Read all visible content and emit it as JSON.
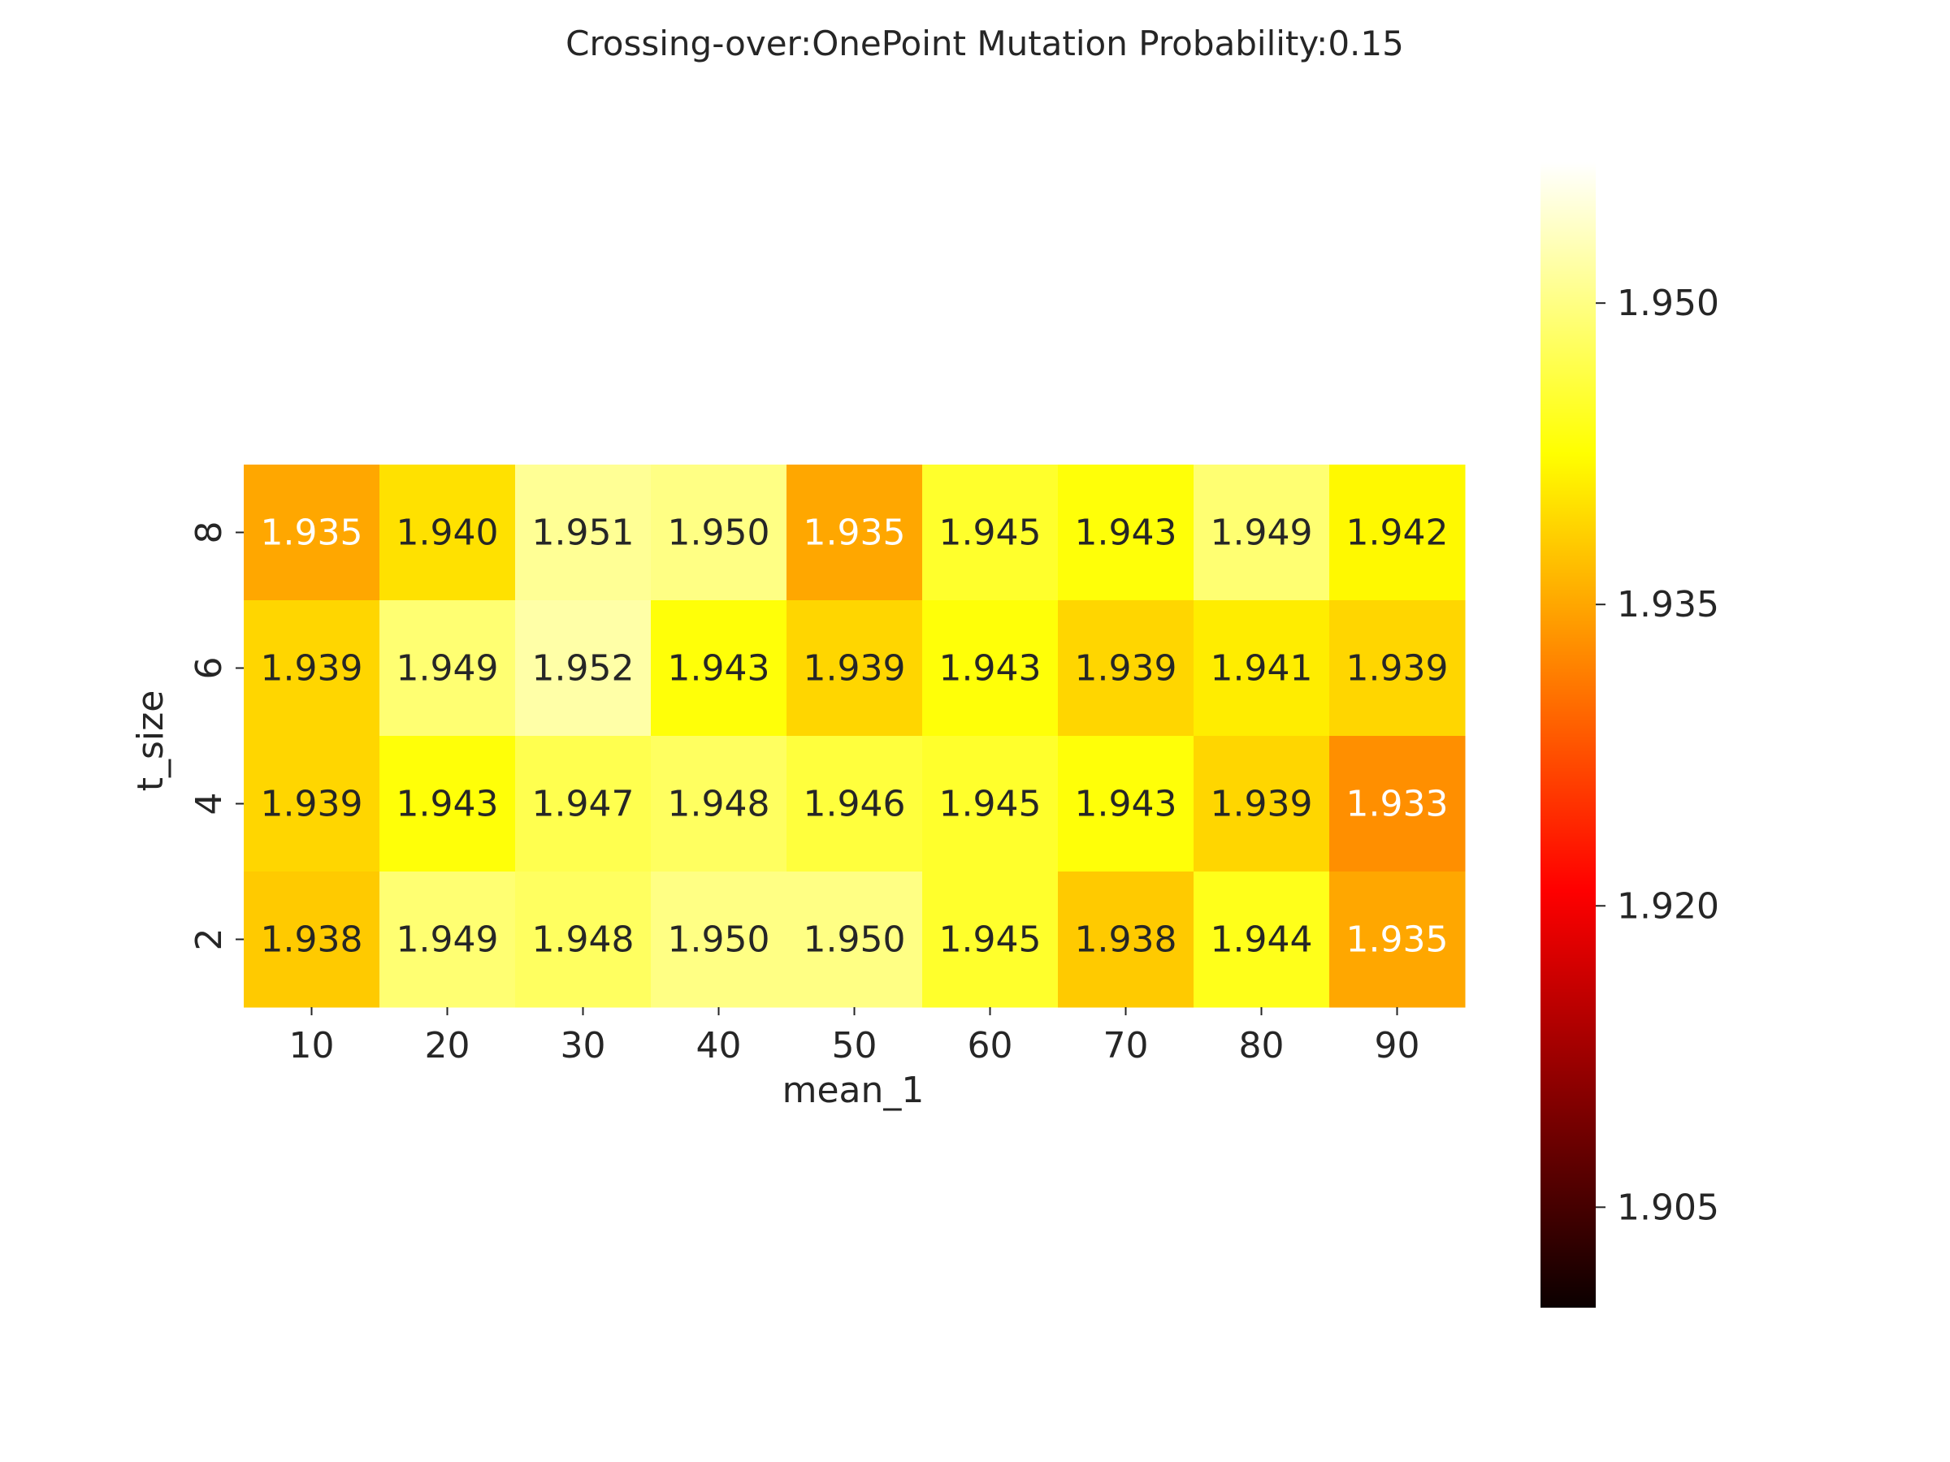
{
  "chart_data": {
    "type": "heatmap",
    "title": "Crossing-over:OnePoint Mutation Probability:0.15",
    "xlabel": "mean_1",
    "ylabel": "t_size",
    "x_categories": [
      "10",
      "20",
      "30",
      "40",
      "50",
      "60",
      "70",
      "80",
      "90"
    ],
    "y_categories": [
      "8",
      "6",
      "4",
      "2"
    ],
    "values": [
      [
        1.935,
        1.94,
        1.951,
        1.95,
        1.935,
        1.945,
        1.943,
        1.949,
        1.942
      ],
      [
        1.939,
        1.949,
        1.952,
        1.943,
        1.939,
        1.943,
        1.939,
        1.941,
        1.939
      ],
      [
        1.939,
        1.943,
        1.947,
        1.948,
        1.946,
        1.945,
        1.943,
        1.939,
        1.933
      ],
      [
        1.938,
        1.949,
        1.948,
        1.95,
        1.95,
        1.945,
        1.938,
        1.944,
        1.935
      ]
    ],
    "labels": [
      [
        "1.935",
        "1.940",
        "1.951",
        "1.950",
        "1.935",
        "1.945",
        "1.943",
        "1.949",
        "1.942"
      ],
      [
        "1.939",
        "1.949",
        "1.952",
        "1.943",
        "1.939",
        "1.943",
        "1.939",
        "1.941",
        "1.939"
      ],
      [
        "1.939",
        "1.943",
        "1.947",
        "1.948",
        "1.946",
        "1.945",
        "1.943",
        "1.939",
        "1.933"
      ],
      [
        "1.938",
        "1.949",
        "1.948",
        "1.950",
        "1.950",
        "1.945",
        "1.938",
        "1.944",
        "1.935"
      ]
    ],
    "colormap": "hot",
    "colorbar": {
      "vmin": 1.9,
      "vmax": 1.957,
      "ticks": [
        1.905,
        1.92,
        1.935,
        1.95
      ],
      "tick_labels": [
        "1.905",
        "1.920",
        "1.935",
        "1.950"
      ]
    },
    "light_text_color": "#ffffff",
    "dark_text_color": "#262626"
  }
}
